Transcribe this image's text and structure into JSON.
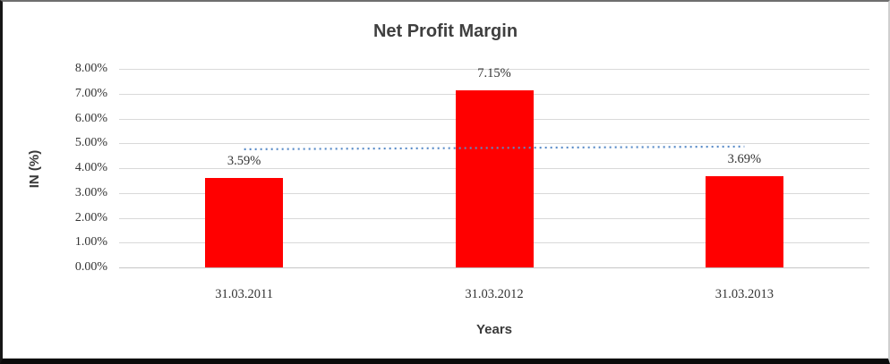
{
  "chart_data": {
    "type": "bar",
    "title": "Net Profit Margin",
    "xlabel": "Years",
    "ylabel": "IN (%)",
    "categories": [
      "31.03.2011",
      "31.03.2012",
      "31.03.2013"
    ],
    "values": [
      3.59,
      7.15,
      3.69
    ],
    "data_labels": [
      "3.59%",
      "7.15%",
      "3.69%"
    ],
    "ylim": [
      0,
      8
    ],
    "ytick_step": 1,
    "ytick_labels": [
      "0.00%",
      "1.00%",
      "2.00%",
      "3.00%",
      "4.00%",
      "5.00%",
      "6.00%",
      "7.00%",
      "8.00%"
    ],
    "grid": true,
    "legend_position": "none",
    "bar_color": "#ff0000",
    "trendline": {
      "type": "linear",
      "style": "dotted",
      "color": "#5a8cc8",
      "start_value": 4.76,
      "end_value": 4.87
    }
  },
  "colors": {
    "text_dark": "#3a3a3a",
    "text_tick": "#333333",
    "gridline": "#d9d9d9",
    "axis_line": "#c6c6c6",
    "bar_red": "#ff0000",
    "trend_blue": "#5a8cc8"
  }
}
